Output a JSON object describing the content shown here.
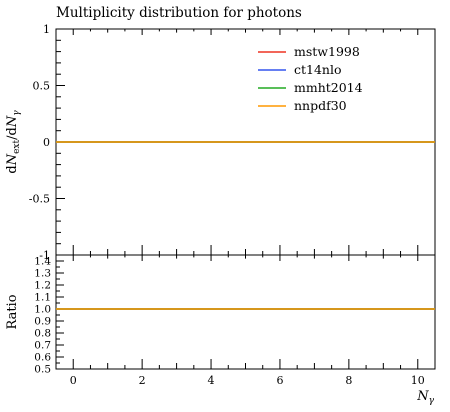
{
  "chart_data": [
    {
      "panel": "main",
      "type": "line",
      "title": "Multiplicity distribution for photons",
      "xlabel": "",
      "ylabel": "dN_ext/dN_γ",
      "ylabel_parts": {
        "d1": "d",
        "n1": "N",
        "sub1": "ext",
        "slash": "/d",
        "n2": "N",
        "sub2": "γ"
      },
      "xlim": [
        -0.5,
        10.5
      ],
      "ylim": [
        -1,
        1
      ],
      "yticks": [
        1,
        0.5,
        0,
        -0.5,
        -1
      ],
      "ytick_labels": [
        "1",
        "0.5",
        "0",
        "-0.5",
        "-1"
      ],
      "grid": false,
      "legend_position": "top-right",
      "x": [
        -0.5,
        10.5
      ],
      "series": [
        {
          "name": "mstw1998",
          "color": "#ee3322",
          "values": [
            0,
            0
          ]
        },
        {
          "name": "ct14nlo",
          "color": "#3355ee",
          "values": [
            0,
            0
          ]
        },
        {
          "name": "mmht2014",
          "color": "#22aa22",
          "values": [
            0,
            0
          ]
        },
        {
          "name": "nnpdf30",
          "color": "#ff9900",
          "values": [
            0,
            0
          ]
        }
      ]
    },
    {
      "panel": "ratio",
      "type": "line",
      "xlabel": "N_γ",
      "xlabel_parts": {
        "n": "N",
        "sub": "γ"
      },
      "ylabel": "Ratio",
      "xlim": [
        -0.5,
        10.5
      ],
      "ylim": [
        0.5,
        1.45
      ],
      "xticks": [
        0,
        2,
        4,
        6,
        8,
        10
      ],
      "xtick_labels": [
        "0",
        "2",
        "4",
        "6",
        "8",
        "10"
      ],
      "yticks": [
        1.4,
        1.3,
        1.2,
        1.1,
        1.0,
        0.9,
        0.8,
        0.7,
        0.6,
        0.5
      ],
      "ytick_labels": [
        "1.4",
        "1.3",
        "1.2",
        "1.1",
        "1.0",
        "0.9",
        "0.8",
        "0.7",
        "0.6",
        "0.5"
      ],
      "grid": false,
      "x": [
        -0.5,
        10.5
      ],
      "series": [
        {
          "name": "mstw1998",
          "color": "#ee3322",
          "values": [
            1,
            1
          ]
        },
        {
          "name": "ct14nlo",
          "color": "#3355ee",
          "values": [
            1,
            1
          ]
        },
        {
          "name": "mmht2014",
          "color": "#22aa22",
          "values": [
            1,
            1
          ]
        },
        {
          "name": "nnpdf30",
          "color": "#ff9900",
          "values": [
            1,
            1
          ]
        }
      ]
    }
  ]
}
